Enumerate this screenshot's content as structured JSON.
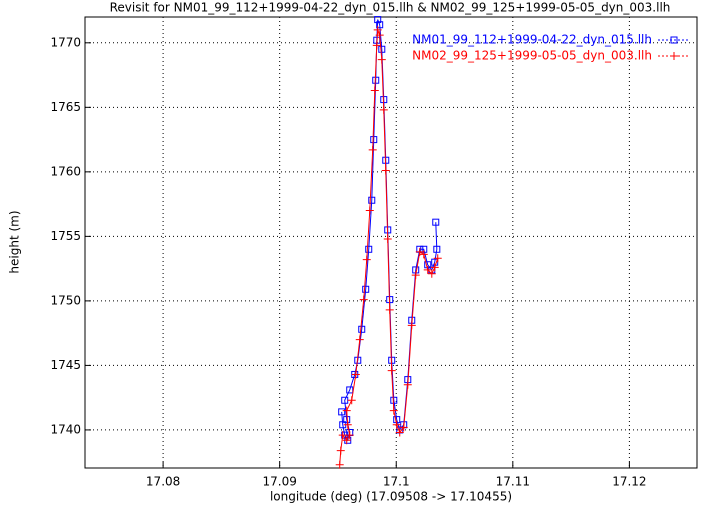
{
  "chart_data": {
    "type": "line",
    "title": "Revisit for NM01_99_112+1999-04-22_dyn_015.llh & NM02_99_125+1999-05-05_dyn_003.llh",
    "xlabel": "longitude (deg) (17.09508 -> 17.10455)",
    "ylabel": "height (m)",
    "xlim": [
      17.0733,
      17.1258
    ],
    "ylim": [
      1737.05,
      1772.0
    ],
    "xticks": [
      17.08,
      17.09,
      17.1,
      17.11,
      17.12
    ],
    "yticks": [
      1740,
      1745,
      1750,
      1755,
      1760,
      1765,
      1770
    ],
    "grid": true,
    "legend": "top-right",
    "series": [
      {
        "name": "NM01_99_112+1999-04-22_dyn_015.llh",
        "color": "#0000ff",
        "marker": "square",
        "x": [
          17.09532,
          17.09541,
          17.09558,
          17.09584,
          17.09601,
          17.09575,
          17.09558,
          17.09601,
          17.09644,
          17.0967,
          17.09704,
          17.09738,
          17.09764,
          17.0979,
          17.09807,
          17.09824,
          17.09833,
          17.09841,
          17.09858,
          17.09876,
          17.09893,
          17.0991,
          17.09927,
          17.09944,
          17.09961,
          17.09979,
          17.10004,
          17.1003,
          17.10064,
          17.10099,
          17.10133,
          17.10167,
          17.10202,
          17.10236,
          17.1027,
          17.10305,
          17.1033,
          17.10348,
          17.10339
        ],
        "values": [
          1741.4,
          1740.4,
          1739.6,
          1739.2,
          1739.8,
          1740.8,
          1742.3,
          1743.1,
          1744.3,
          1745.4,
          1747.8,
          1750.9,
          1754.0,
          1757.8,
          1762.5,
          1767.1,
          1770.2,
          1771.8,
          1771.4,
          1769.5,
          1765.6,
          1760.9,
          1755.5,
          1750.1,
          1745.4,
          1742.3,
          1740.8,
          1740.0,
          1740.4,
          1743.9,
          1748.5,
          1752.4,
          1754.0,
          1754.0,
          1752.8,
          1752.4,
          1753.0,
          1754.0,
          1756.1
        ]
      },
      {
        "name": "NM02_99_125+1999-05-05_dyn_003.llh",
        "color": "#ff0000",
        "marker": "plus",
        "x": [
          17.09515,
          17.09524,
          17.09541,
          17.09575,
          17.09601,
          17.09584,
          17.09575,
          17.09618,
          17.09653,
          17.09687,
          17.09721,
          17.09747,
          17.09773,
          17.09798,
          17.09816,
          17.09833,
          17.09841,
          17.09858,
          17.09876,
          17.09893,
          17.0991,
          17.09927,
          17.09944,
          17.09961,
          17.09979,
          17.10004,
          17.1003,
          17.10064,
          17.10099,
          17.10133,
          17.10167,
          17.10202,
          17.10236,
          17.1027,
          17.10305,
          17.1033,
          17.10356
        ],
        "values": [
          1737.3,
          1738.4,
          1739.6,
          1739.2,
          1739.6,
          1740.4,
          1741.5,
          1742.3,
          1744.3,
          1747.0,
          1750.1,
          1753.2,
          1757.0,
          1761.7,
          1766.3,
          1769.8,
          1771.0,
          1770.6,
          1768.7,
          1764.8,
          1760.1,
          1754.8,
          1749.3,
          1744.6,
          1741.5,
          1740.4,
          1739.8,
          1740.2,
          1743.5,
          1748.1,
          1752.0,
          1753.8,
          1753.6,
          1752.4,
          1752.1,
          1752.6,
          1753.3
        ]
      }
    ]
  }
}
